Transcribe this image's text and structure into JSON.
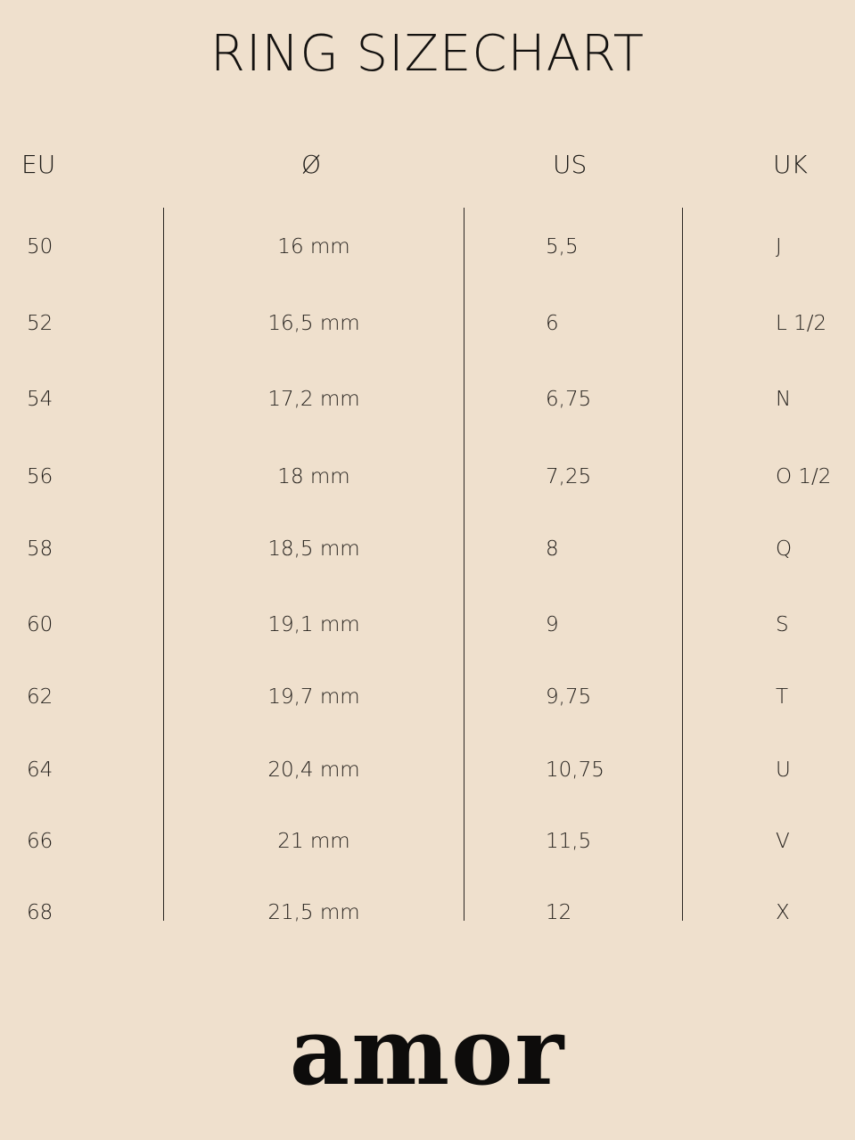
{
  "title": "RING SIZECHART",
  "headers": {
    "eu": "EU",
    "diameter": "Ø",
    "us": "US",
    "uk": "UK"
  },
  "rows": [
    {
      "eu": "50",
      "diameter": "16 mm",
      "us": "5,5",
      "uk": "J"
    },
    {
      "eu": "52",
      "diameter": "16,5 mm",
      "us": "6",
      "uk": "L 1/2"
    },
    {
      "eu": "54",
      "diameter": "17,2 mm",
      "us": "6,75",
      "uk": "N"
    },
    {
      "eu": "56",
      "diameter": "18 mm",
      "us": "7,25",
      "uk": "O 1/2"
    },
    {
      "eu": "58",
      "diameter": "18,5 mm",
      "us": "8",
      "uk": "Q"
    },
    {
      "eu": "60",
      "diameter": "19,1 mm",
      "us": "9",
      "uk": "S"
    },
    {
      "eu": "62",
      "diameter": "19,7 mm",
      "us": "9,75",
      "uk": "T"
    },
    {
      "eu": "64",
      "diameter": "20,4 mm",
      "us": "10,75",
      "uk": "U"
    },
    {
      "eu": "66",
      "diameter": "21 mm",
      "us": "11,5",
      "uk": "V"
    },
    {
      "eu": "68",
      "diameter": "21,5 mm",
      "us": "12",
      "uk": "X"
    }
  ],
  "brand": "amor",
  "colors": {
    "background": "#efe0cd",
    "text": "#1c1a17"
  }
}
